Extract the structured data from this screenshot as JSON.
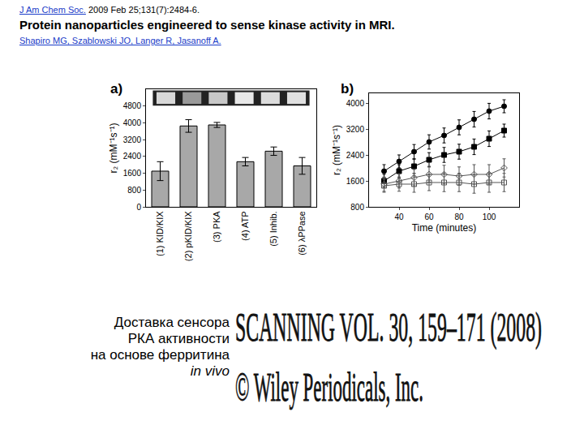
{
  "header": {
    "journal": "J Am Chem Soc.",
    "citation": "2009 Feb 25;131(7):2484-6.",
    "title": "Protein nanoparticles engineered to sense kinase activity in MRI.",
    "authors": "Shapiro MG, Szablowski JO, Langer R, Jasanoff A."
  },
  "caption": {
    "lines": [
      "Доставка сенсора",
      "РКА активности",
      "на основе ферритина"
    ],
    "italic_line": "in vivo"
  },
  "journal_image": {
    "lines": [
      "SCANNING VOL. 30, 159–171 (2008)",
      "© Wiley Periodicals, Inc."
    ]
  },
  "chart_data": [
    {
      "type": "bar",
      "label": "a)",
      "categories": [
        "(1) KID/KIX",
        "(2) pKID/KIX",
        "(3) PKA",
        "(4) ATP",
        "(5) Inhib.",
        "(6) λPPase"
      ],
      "values": [
        1700,
        3850,
        3900,
        2150,
        2650,
        1950
      ],
      "errors": [
        450,
        300,
        120,
        200,
        200,
        400
      ],
      "color": "#a8a8a8",
      "ylim": [
        0,
        5600
      ],
      "yticks": [
        0,
        800,
        1600,
        2400,
        3200,
        4000,
        4800
      ],
      "y_label": "r₂ (mM⁻¹s⁻¹)"
    },
    {
      "type": "line",
      "label": "b)",
      "x": [
        30,
        40,
        50,
        60,
        70,
        80,
        90,
        100,
        110
      ],
      "series": [
        {
          "marker": "circle",
          "color": "#000000",
          "values": [
            1900,
            2200,
            2500,
            2800,
            3000,
            3250,
            3500,
            3750,
            3900
          ],
          "errors": [
            200,
            200,
            220,
            220,
            230,
            230,
            240,
            240,
            200
          ]
        },
        {
          "marker": "square",
          "color": "#000000",
          "values": [
            1600,
            1900,
            2050,
            2250,
            2400,
            2500,
            2650,
            2900,
            3150
          ],
          "errors": [
            200,
            200,
            220,
            220,
            230,
            230,
            240,
            240,
            200
          ]
        },
        {
          "marker": "diamond-open",
          "color": "#555555",
          "values": [
            1500,
            1600,
            1700,
            1800,
            1800,
            1750,
            1800,
            1800,
            2000
          ],
          "errors": [
            220,
            220,
            250,
            250,
            280,
            280,
            300,
            300,
            280
          ]
        },
        {
          "marker": "square-open",
          "color": "#555555",
          "values": [
            1450,
            1500,
            1500,
            1550,
            1550,
            1550,
            1500,
            1550,
            1550
          ],
          "errors": [
            200,
            220,
            250,
            250,
            280,
            280,
            280,
            300,
            280
          ]
        }
      ],
      "xlim": [
        20,
        120
      ],
      "xticks": [
        40,
        60,
        80,
        100
      ],
      "ylim": [
        800,
        4300
      ],
      "yticks": [
        800,
        1600,
        2400,
        3200,
        4000
      ],
      "x_label": "Time (minutes)",
      "y_label": "r₂ (mM⁻¹s⁻¹)"
    }
  ]
}
